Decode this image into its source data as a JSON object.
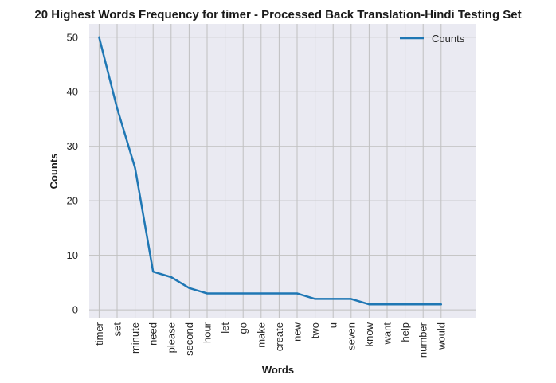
{
  "chart_data": {
    "type": "line",
    "title": "20 Highest Words Frequency for timer - Processed Back Translation-Hindi Testing Set",
    "xlabel": "Words",
    "ylabel": "Counts",
    "categories": [
      "timer",
      "set",
      "minute",
      "need",
      "please",
      "second",
      "hour",
      "let",
      "go",
      "make",
      "create",
      "new",
      "two",
      "u",
      "seven",
      "know",
      "want",
      "help",
      "number",
      "would"
    ],
    "series": [
      {
        "name": "Counts",
        "values": [
          50,
          37,
          26,
          7,
          6,
          4,
          3,
          3,
          3,
          3,
          3,
          3,
          2,
          2,
          2,
          1,
          1,
          1,
          1,
          1
        ]
      }
    ],
    "yticks": [
      0,
      10,
      20,
      30,
      40,
      50
    ],
    "ylim": [
      -1.45,
      52.45
    ],
    "grid": true,
    "legend": "top-right",
    "colors": {
      "line": "#1f77b4",
      "background": "#eaeaf2",
      "grid": "#c0c0c0"
    }
  }
}
